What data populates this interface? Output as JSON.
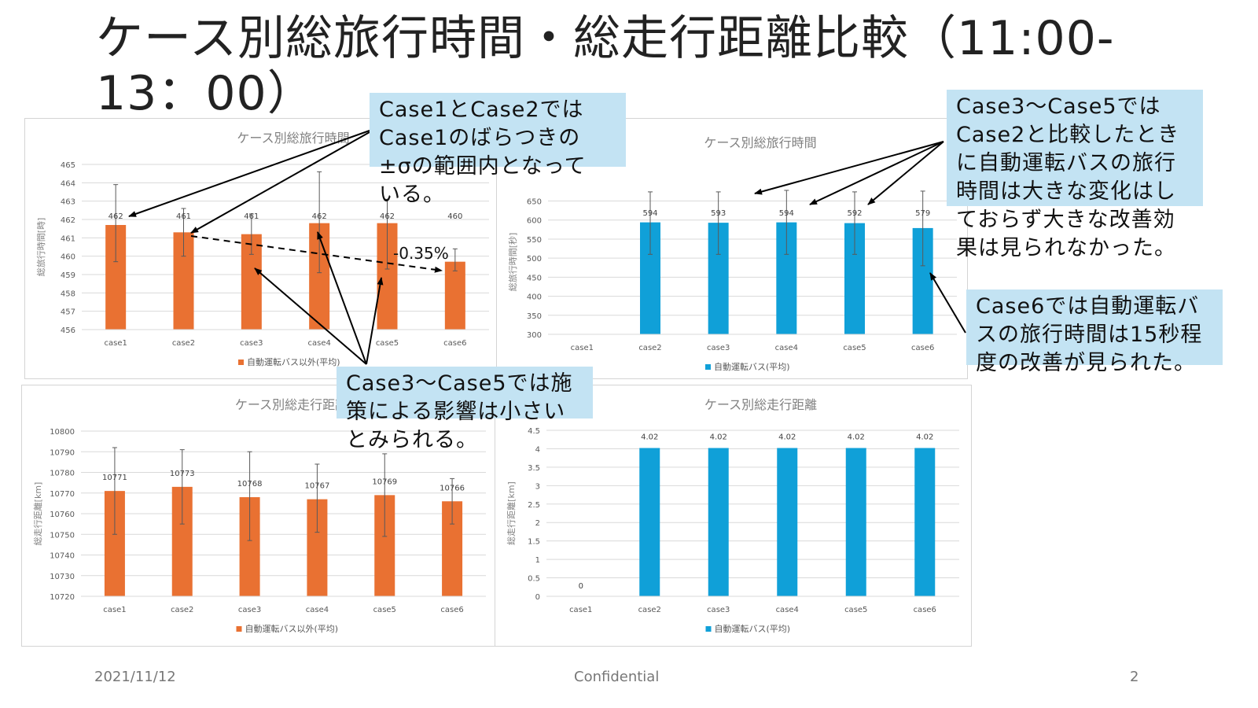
{
  "slide": {
    "title": "ケース別総旅行時間・総走行距離比較（11:00-13：00）",
    "date": "2021/11/12",
    "confidential": "Confidential",
    "page_number": "2"
  },
  "colors": {
    "orange": "#e97132",
    "blue": "#10a0d8",
    "callout_bg": "#c3e3f3"
  },
  "annotations": {
    "change_label": "-0.35%",
    "callout_1": "Case1とCase2では\nCase1のばらつきの\n±σの範囲内となって\nいる。",
    "callout_2": "Case3～Case5では\nCase2と比較したとき\nに自動運転バスの旅行\n時間は大きな変化はし\nておらず大きな改善効\n果は見られなかった。",
    "callout_3": "Case6では自動運転バ\nスの旅行時間は15秒程\n度の改善が見られた。",
    "callout_4": "Case3～Case5では施\n策による影響は小さい\nとみられる。"
  },
  "chart_data": [
    {
      "type": "bar",
      "title": "ケース別総旅行時間",
      "ylabel": "総旅行時間[時]",
      "categories": [
        "case1",
        "case2",
        "case3",
        "case4",
        "case5",
        "case6"
      ],
      "series": [
        {
          "name": "自動運転バス以外(平均)",
          "values": [
            461.7,
            461.3,
            461.2,
            461.8,
            461.8,
            459.7
          ],
          "error_low": [
            459.7,
            460.0,
            460.1,
            459.1,
            459.3,
            459.2
          ],
          "error_high": [
            463.9,
            462.6,
            462.3,
            464.6,
            463.1,
            460.4
          ]
        }
      ],
      "data_labels": [
        "462",
        "461",
        "461",
        "462",
        "462",
        "460"
      ],
      "yticks": [
        "456",
        "457",
        "458",
        "459",
        "460",
        "461",
        "462",
        "463",
        "464",
        "465"
      ],
      "ylim": [
        456,
        465
      ],
      "legend": "bottom",
      "grid": true
    },
    {
      "type": "bar",
      "title": "ケース別総旅行時間",
      "ylabel": "総旅行時間[秒]",
      "categories": [
        "case1",
        "case2",
        "case3",
        "case4",
        "case5",
        "case6"
      ],
      "series": [
        {
          "name": "自動運転バス(平均)",
          "values": [
            null,
            594,
            593,
            594,
            592,
            579
          ],
          "error_low": [
            null,
            510,
            510,
            510,
            510,
            480
          ],
          "error_high": [
            null,
            674,
            674,
            678,
            674,
            676
          ]
        }
      ],
      "data_labels": [
        "",
        "594",
        "593",
        "594",
        "592",
        "579"
      ],
      "yticks": [
        "300",
        "350",
        "400",
        "450",
        "500",
        "550",
        "600",
        "650"
      ],
      "ylim": [
        300,
        680
      ],
      "legend": "bottom",
      "grid": true
    },
    {
      "type": "bar",
      "title": "ケース別総走行距離",
      "ylabel": "総走行距離[km]",
      "categories": [
        "case1",
        "case2",
        "case3",
        "case4",
        "case5",
        "case6"
      ],
      "series": [
        {
          "name": "自動運転バス以外(平均)",
          "values": [
            10771,
            10773,
            10768,
            10767,
            10769,
            10766
          ],
          "error_low": [
            10750,
            10755,
            10747,
            10751,
            10749,
            10755
          ],
          "error_high": [
            10792,
            10791,
            10790,
            10784,
            10789,
            10777
          ]
        }
      ],
      "data_labels": [
        "10771",
        "10773",
        "10768",
        "10767",
        "10769",
        "10766"
      ],
      "yticks": [
        "10720",
        "10730",
        "10740",
        "10750",
        "10760",
        "10770",
        "10780",
        "10790",
        "10800"
      ],
      "ylim": [
        10720,
        10800
      ],
      "legend": "bottom",
      "grid": true
    },
    {
      "type": "bar",
      "title": "ケース別総走行距離",
      "ylabel": "総走行距離[km]",
      "categories": [
        "case1",
        "case2",
        "case3",
        "case4",
        "case5",
        "case6"
      ],
      "series": [
        {
          "name": "自動運転バス(平均)",
          "values": [
            0,
            4.02,
            4.02,
            4.02,
            4.02,
            4.02
          ],
          "error_low": [
            null,
            null,
            null,
            null,
            null,
            null
          ],
          "error_high": [
            null,
            null,
            null,
            null,
            null,
            null
          ]
        }
      ],
      "data_labels": [
        "0",
        "4.02",
        "4.02",
        "4.02",
        "4.02",
        "4.02"
      ],
      "yticks": [
        "0",
        "0.5",
        "1",
        "1.5",
        "2",
        "2.5",
        "3",
        "3.5",
        "4",
        "4.5"
      ],
      "ylim": [
        0,
        4.5
      ],
      "legend": "bottom",
      "grid": true
    }
  ]
}
